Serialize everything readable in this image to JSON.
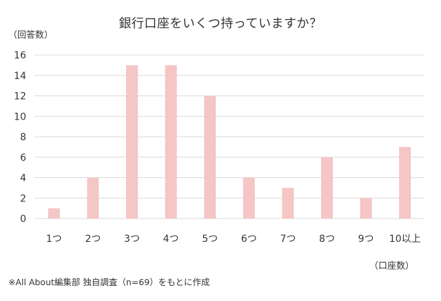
{
  "chart_data": {
    "type": "bar",
    "title": "銀行口座をいくつ持っていますか？",
    "ylabel": "（回答数）",
    "xlabel": "（口座数）",
    "categories": [
      "1つ",
      "2つ",
      "3つ",
      "4つ",
      "5つ",
      "6つ",
      "7つ",
      "8つ",
      "9つ",
      "10以上"
    ],
    "values": [
      1,
      4,
      15,
      15,
      12,
      4,
      3,
      6,
      2,
      7
    ],
    "ylim": [
      0,
      16
    ],
    "yticks": [
      0,
      2,
      4,
      6,
      8,
      10,
      12,
      14,
      16
    ],
    "grid": true,
    "bar_color": "#f4c6c6",
    "grid_color": "#d9d9d9"
  },
  "note": "※All About編集部 独自調査（n=69）をもとに作成"
}
